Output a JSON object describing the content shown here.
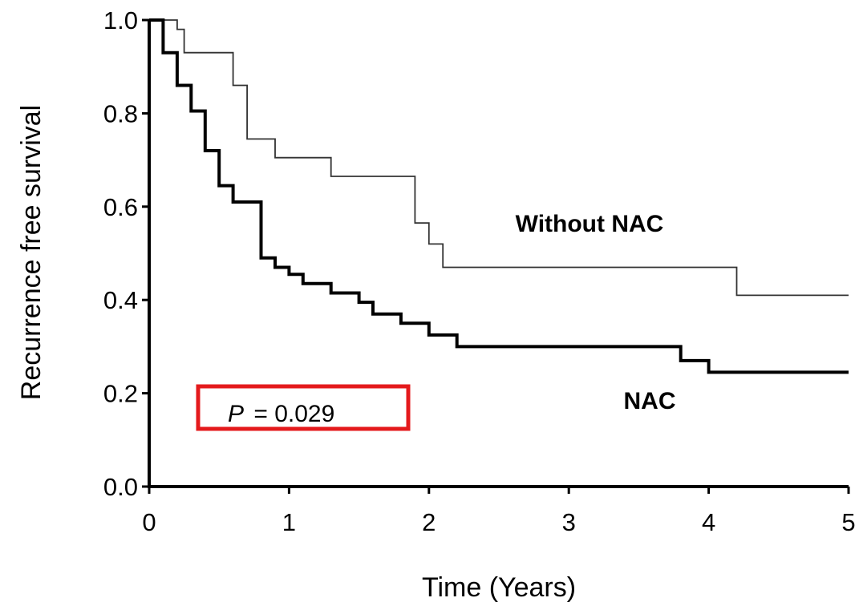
{
  "chart_data": {
    "type": "line",
    "title": "",
    "xlabel": "Time (Years)",
    "ylabel": "Recurrence free survival",
    "xlim": [
      0,
      5
    ],
    "ylim": [
      0,
      1.0
    ],
    "x_ticks": [
      "0",
      "1",
      "2",
      "3",
      "4",
      "5"
    ],
    "y_ticks": [
      "0.0",
      "0.2",
      "0.4",
      "0.6",
      "0.8",
      "1.0"
    ],
    "grid": false,
    "legend": "none",
    "series": [
      {
        "name": "Without NAC",
        "line_style": "thin",
        "color": "#333333",
        "step_points": [
          [
            0,
            1.0
          ],
          [
            0.2,
            1.0
          ],
          [
            0.2,
            0.98
          ],
          [
            0.25,
            0.98
          ],
          [
            0.25,
            0.93
          ],
          [
            0.6,
            0.93
          ],
          [
            0.6,
            0.86
          ],
          [
            0.7,
            0.86
          ],
          [
            0.7,
            0.745
          ],
          [
            0.9,
            0.745
          ],
          [
            0.9,
            0.705
          ],
          [
            1.3,
            0.705
          ],
          [
            1.3,
            0.665
          ],
          [
            1.9,
            0.665
          ],
          [
            1.9,
            0.565
          ],
          [
            2.0,
            0.565
          ],
          [
            2.0,
            0.52
          ],
          [
            2.1,
            0.52
          ],
          [
            2.1,
            0.47
          ],
          [
            4.2,
            0.47
          ],
          [
            4.2,
            0.41
          ],
          [
            5.0,
            0.41
          ]
        ]
      },
      {
        "name": "NAC",
        "line_style": "thick",
        "color": "#000000",
        "step_points": [
          [
            0,
            1.0
          ],
          [
            0.1,
            1.0
          ],
          [
            0.1,
            0.93
          ],
          [
            0.2,
            0.93
          ],
          [
            0.2,
            0.86
          ],
          [
            0.3,
            0.86
          ],
          [
            0.3,
            0.805
          ],
          [
            0.4,
            0.805
          ],
          [
            0.4,
            0.72
          ],
          [
            0.5,
            0.72
          ],
          [
            0.5,
            0.645
          ],
          [
            0.6,
            0.645
          ],
          [
            0.6,
            0.61
          ],
          [
            0.8,
            0.61
          ],
          [
            0.8,
            0.49
          ],
          [
            0.9,
            0.49
          ],
          [
            0.9,
            0.47
          ],
          [
            1.0,
            0.47
          ],
          [
            1.0,
            0.455
          ],
          [
            1.1,
            0.455
          ],
          [
            1.1,
            0.435
          ],
          [
            1.3,
            0.435
          ],
          [
            1.3,
            0.415
          ],
          [
            1.5,
            0.415
          ],
          [
            1.5,
            0.395
          ],
          [
            1.6,
            0.395
          ],
          [
            1.6,
            0.37
          ],
          [
            1.8,
            0.37
          ],
          [
            1.8,
            0.35
          ],
          [
            2.0,
            0.35
          ],
          [
            2.0,
            0.325
          ],
          [
            2.2,
            0.325
          ],
          [
            2.2,
            0.3
          ],
          [
            3.8,
            0.3
          ],
          [
            3.8,
            0.27
          ],
          [
            4.0,
            0.27
          ],
          [
            4.0,
            0.245
          ],
          [
            5.0,
            0.245
          ]
        ]
      }
    ],
    "annotations": {
      "p_value_symbol": "P",
      "p_value_text": "= 0.029",
      "highlight_color": "#e41a1c"
    }
  }
}
